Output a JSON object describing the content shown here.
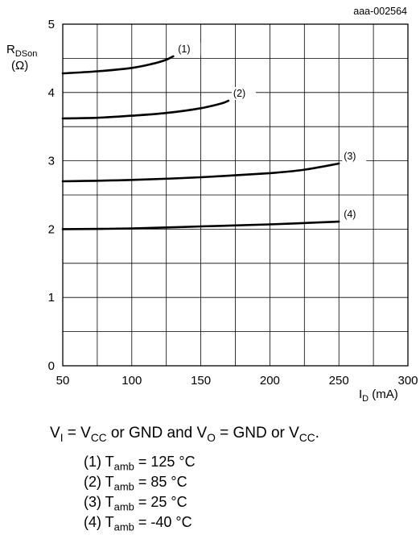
{
  "chart_data": {
    "type": "line",
    "figure_id": "aaa-002564",
    "xlabel": {
      "main": "I",
      "sub": "D",
      "unit": " (mA)"
    },
    "ylabel": {
      "main": "R",
      "sub": "DSon",
      "unit": "(Ω)"
    },
    "xlim": [
      50,
      300
    ],
    "ylim": [
      0,
      5
    ],
    "x_ticks": [
      "50",
      "100",
      "150",
      "200",
      "250",
      "300"
    ],
    "y_ticks": [
      "0",
      "1",
      "2",
      "3",
      "4",
      "5"
    ],
    "grid": true,
    "grid_x_step": 25,
    "grid_y_step": 0.5,
    "series": [
      {
        "name": "(1)",
        "x": [
          50,
          75,
          100,
          115,
          125,
          130
        ],
        "y": [
          4.28,
          4.31,
          4.36,
          4.42,
          4.48,
          4.53
        ]
      },
      {
        "name": "(2)",
        "x": [
          50,
          75,
          100,
          125,
          150,
          165,
          170
        ],
        "y": [
          3.62,
          3.63,
          3.66,
          3.7,
          3.77,
          3.84,
          3.88
        ]
      },
      {
        "name": "(3)",
        "x": [
          50,
          100,
          150,
          200,
          225,
          250
        ],
        "y": [
          2.7,
          2.72,
          2.76,
          2.82,
          2.87,
          2.96
        ]
      },
      {
        "name": "(4)",
        "x": [
          50,
          100,
          150,
          200,
          250
        ],
        "y": [
          2.0,
          2.01,
          2.04,
          2.07,
          2.11
        ]
      }
    ]
  },
  "conditions": {
    "v": "V",
    "i_sub": "I",
    "eq": " = V",
    "cc_sub": "CC",
    "or_gnd": " or GND and V",
    "o_sub": "O",
    "eq_gnd": " = GND or V",
    "cc_sub2": "CC",
    "end": "."
  },
  "legend": [
    {
      "num": "(1) T",
      "sub": "amb",
      "val": " = 125 °C"
    },
    {
      "num": "(2) T",
      "sub": "amb",
      "val": " = 85 °C"
    },
    {
      "num": "(3) T",
      "sub": "amb",
      "val": " = 25 °C"
    },
    {
      "num": "(4) T",
      "sub": "amb",
      "val": " = -40 °C"
    }
  ]
}
